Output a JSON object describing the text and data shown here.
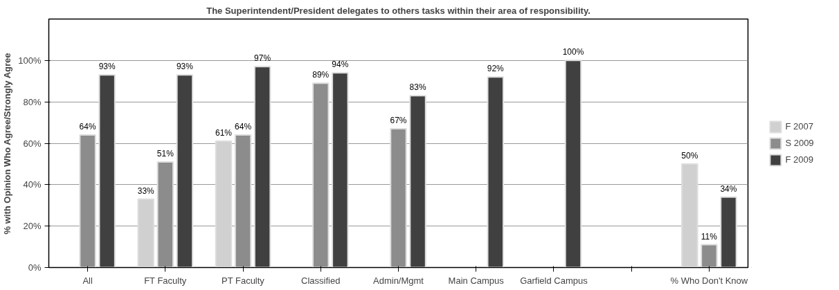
{
  "chart_data": {
    "type": "bar",
    "title": "The Superintendent/President delegates to others tasks within their area of responsibility.",
    "ylabel": "% with Opinion Who Agree/Strongly Agree",
    "categories": [
      "All",
      "FT Faculty",
      "PT Faculty",
      "Classified",
      "Admin/Mgmt",
      "Main Campus",
      "Garfield Campus",
      null,
      "% Who Don't Know"
    ],
    "series": [
      {
        "name": "F 2007",
        "color": "#d0d0d0",
        "values": [
          null,
          33,
          61,
          null,
          null,
          null,
          null,
          null,
          50
        ],
        "value_labels": [
          null,
          "33%",
          "61%",
          null,
          null,
          null,
          null,
          null,
          "50%"
        ]
      },
      {
        "name": "S 2009",
        "color": "#8c8c8c",
        "values": [
          64,
          51,
          64,
          89,
          67,
          null,
          null,
          null,
          11
        ],
        "value_labels": [
          "64%",
          "51%",
          "64%",
          "89%",
          "67%",
          null,
          null,
          null,
          "11%"
        ]
      },
      {
        "name": "F 2009",
        "color": "#404040",
        "values": [
          93,
          93,
          97,
          94,
          83,
          92,
          100,
          null,
          34
        ],
        "value_labels": [
          "93%",
          "93%",
          "97%",
          "94%",
          "83%",
          "92%",
          "100%",
          null,
          "34%"
        ]
      }
    ],
    "ylim": [
      0,
      120
    ],
    "yticks": [
      {
        "value": 0,
        "label": "0%"
      },
      {
        "value": 20,
        "label": "20%"
      },
      {
        "value": 40,
        "label": "40%"
      },
      {
        "value": 60,
        "label": "60%"
      },
      {
        "value": 80,
        "label": "80%"
      },
      {
        "value": 100,
        "label": "100%"
      }
    ],
    "grid": "y",
    "legend": "right"
  }
}
